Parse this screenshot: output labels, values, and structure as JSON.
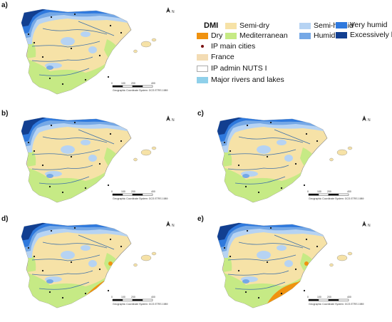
{
  "panels": [
    {
      "label": "a)",
      "dry_extent": 0
    },
    {
      "label": "b)",
      "dry_extent": 1
    },
    {
      "label": "c)",
      "dry_extent": 1
    },
    {
      "label": "d)",
      "dry_extent": 2
    },
    {
      "label": "e)",
      "dry_extent": 3
    }
  ],
  "north_label": "N",
  "scale_ticks": [
    "0",
    "100",
    "200",
    "400"
  ],
  "coord_text": "Geographic Coordinate System: GCS ETRS 1989",
  "legend": {
    "title": "DMI",
    "classes": [
      {
        "label": "Dry",
        "color": "#f0920f"
      },
      {
        "label": "Semi-dry",
        "color": "#f6e2a7"
      },
      {
        "label": "Mediterranean",
        "color": "#c6ea85"
      },
      {
        "label": "Semi-humid",
        "color": "#b6d3f3"
      },
      {
        "label": "Humid",
        "color": "#75a8e6"
      },
      {
        "label": "Very humid",
        "color": "#2f79dd"
      },
      {
        "label": "Excessively humid",
        "color": "#123f90"
      }
    ],
    "other": [
      {
        "label": "IP main cities",
        "symbol": "dot"
      },
      {
        "label": "France",
        "color": "#f3dcb4"
      },
      {
        "label": "IP admin NUTS I",
        "symbol": "outline"
      },
      {
        "label": "Major rivers and lakes",
        "color": "#8fd0ea"
      }
    ]
  },
  "colors": {
    "dry": "#f0920f",
    "semidry": "#f6e2a7",
    "mediterranean": "#c6ea85",
    "semihumid": "#b6d3f3",
    "humid": "#75a8e6",
    "veryhumid": "#2f79dd",
    "excessivelyhumid": "#123f90",
    "river": "#3d6fa8",
    "island": "#f6e2a7"
  }
}
